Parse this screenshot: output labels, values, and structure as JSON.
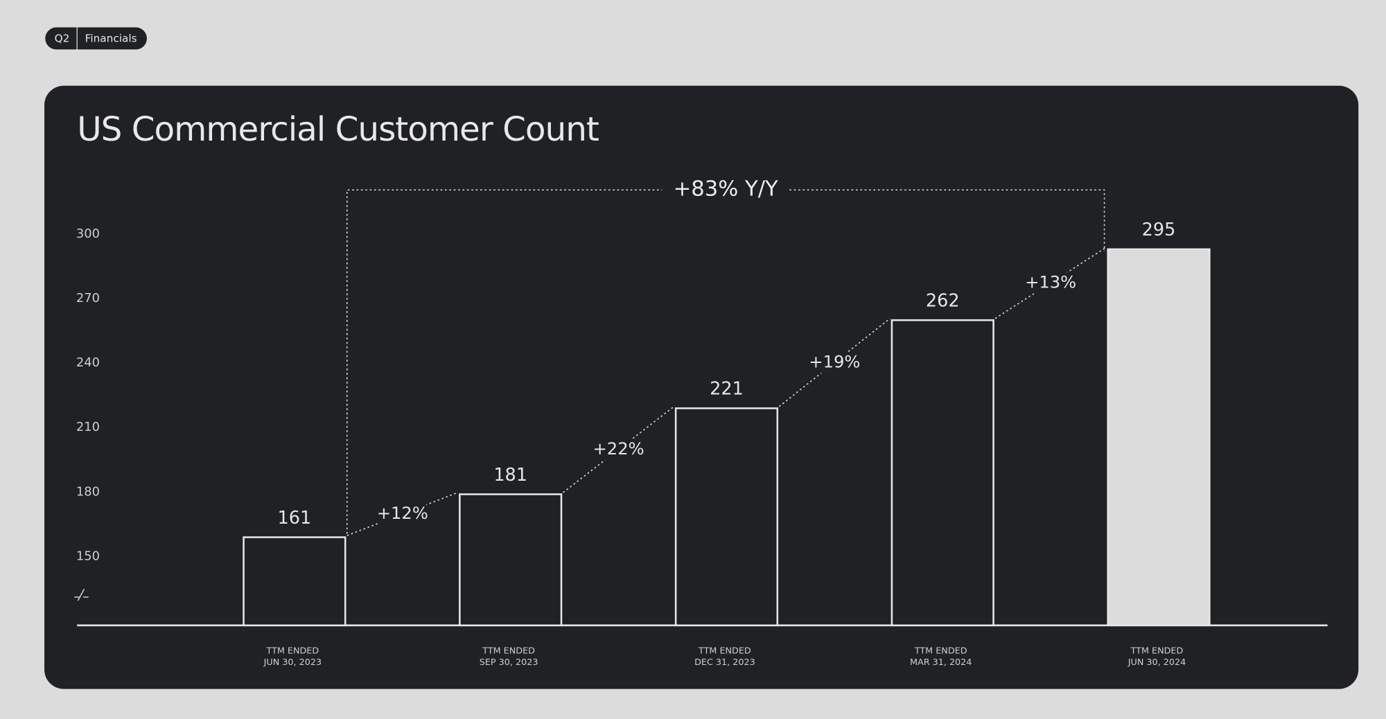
{
  "header": {
    "quarter": "Q2",
    "section": "Financials"
  },
  "chart_data": {
    "type": "bar",
    "title": "US Commercial Customer Count",
    "categories": [
      [
        "TTM ENDED",
        "JUN 30, 2023"
      ],
      [
        "TTM ENDED",
        "SEP 30, 2023"
      ],
      [
        "TTM ENDED",
        "DEC 31, 2023"
      ],
      [
        "TTM ENDED",
        "MAR 31, 2024"
      ],
      [
        "TTM ENDED",
        "JUN 30, 2024"
      ]
    ],
    "values": [
      161,
      181,
      221,
      262,
      295
    ],
    "colors": [
      "#1f2124",
      "#1f2124",
      "#1f2124",
      "#1f2124",
      "#dcdcdc"
    ],
    "outline_color": "#e6e6e6",
    "growth_labels": [
      "+12%",
      "+22%",
      "+19%",
      "+13%"
    ],
    "total_growth_label": "+83% Y/Y",
    "ylim": [
      120,
      300
    ],
    "yticks": [
      150,
      180,
      210,
      240,
      270,
      300
    ],
    "grid": false
  }
}
